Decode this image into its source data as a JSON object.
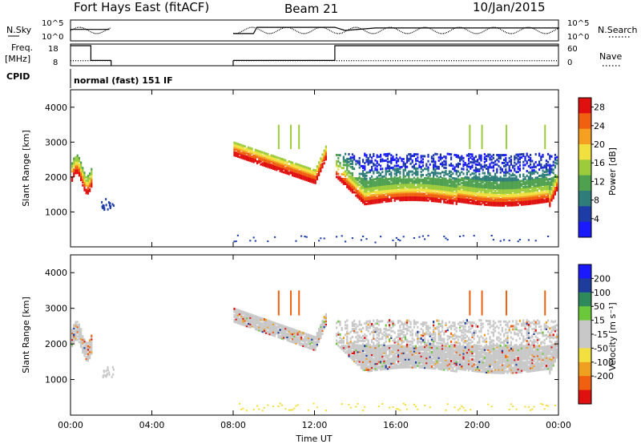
{
  "header": {
    "station": "Fort Hays East (fitACF)",
    "beam": "Beam 21",
    "date": "10/Jan/2015"
  },
  "panel_labels": {
    "nsky": "N.Sky",
    "nsearch": "N.Search",
    "freq_line1": "Freq.",
    "freq_line2": "[MHz]",
    "nave": "Nave",
    "cpid": "CPID",
    "cpid_value": "normal (fast) 151 IF"
  },
  "chart_data": [
    {
      "type": "line",
      "name": "noise-panel",
      "left_ticks": [
        "10^5",
        "10^0"
      ],
      "right_ticks": [
        "10^5",
        "10^0"
      ],
      "left_label": "N.Sky",
      "right_label": "N.Search",
      "x": [
        "00:00",
        "00:05",
        "01:55",
        "02:00",
        "08:00",
        "09:00",
        "09:10",
        "13:00",
        "13:30",
        "15:00",
        "24:00"
      ],
      "sky_level": [
        0.55,
        0.55,
        0.55,
        null,
        0.35,
        0.35,
        0.65,
        0.65,
        0.5,
        0.62,
        0.62
      ]
    },
    {
      "type": "line",
      "name": "freq-panel",
      "left_ticks": [
        "18",
        "8"
      ],
      "right_ticks": [
        "60",
        "0"
      ],
      "left_label": "Freq. [MHz]",
      "right_label": "Nave",
      "freq_segments": [
        {
          "start": "00:00",
          "end": "01:00",
          "value": 18
        },
        {
          "start": "01:00",
          "end": "02:00",
          "value": 10
        },
        {
          "start": "08:00",
          "end": "13:00",
          "value": 10
        },
        {
          "start": "13:00",
          "end": "24:00",
          "value": 18
        }
      ],
      "nave_level": 14
    },
    {
      "type": "heatmap",
      "name": "power-panel",
      "ylabel": "Slant Range [km]",
      "yticks": [
        1000,
        2000,
        3000,
        4000
      ],
      "ylim": [
        0,
        4500
      ],
      "colorbar_label": "Power [dB]",
      "colorbar_ticks": [
        4,
        8,
        12,
        16,
        20,
        24,
        28
      ],
      "colorbar_colors": [
        "#1a1aff",
        "#1e3ca8",
        "#2e7d7a",
        "#4fa04f",
        "#9ccc3c",
        "#f0e040",
        "#f5a020",
        "#f06010",
        "#e01010"
      ],
      "colorbar_range": [
        0,
        30
      ]
    },
    {
      "type": "heatmap",
      "name": "velocity-panel",
      "ylabel": "Slant Range [km]",
      "yticks": [
        1000,
        2000,
        3000,
        4000
      ],
      "ylim": [
        0,
        4500
      ],
      "xlabel": "Time UT",
      "xticks": [
        "00:00",
        "04:00",
        "08:00",
        "12:00",
        "16:00",
        "20:00",
        "00:00"
      ],
      "xlim_hours": [
        0,
        24
      ],
      "colorbar_label": "Velocity [m s⁻¹]",
      "colorbar_ticks": [
        "200",
        "100",
        "50",
        "15",
        "-15",
        "-50",
        "-100",
        "-200"
      ],
      "colorbar_colors": [
        "#1a1aff",
        "#1e3c9c",
        "#2e8a5a",
        "#6ac83a",
        "#c8c8c8",
        "#c8c8c8",
        "#f2e040",
        "#f0a020",
        "#f06010",
        "#e01010"
      ]
    }
  ]
}
